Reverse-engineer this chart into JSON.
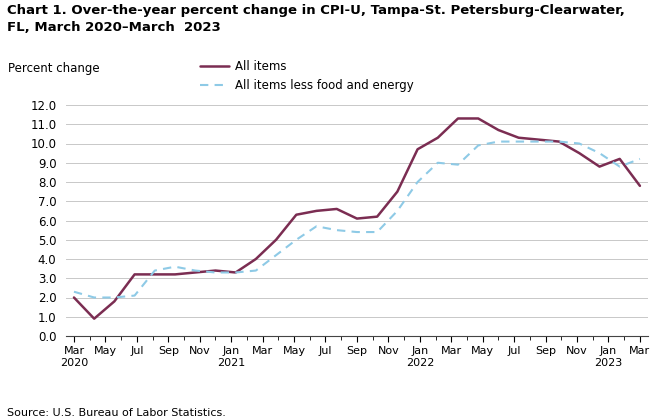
{
  "title": "Chart 1. Over-the-year percent change in CPI-U, Tampa-St. Petersburg-Clearwater,\nFL, March 2020–March  2023",
  "ylabel": "Percent change",
  "source": "Source: U.S. Bureau of Labor Statistics.",
  "all_items": [
    2.0,
    0.9,
    1.8,
    3.2,
    3.2,
    3.2,
    3.3,
    3.4,
    3.3,
    4.0,
    5.0,
    6.3,
    6.5,
    6.6,
    6.1,
    6.2,
    7.5,
    9.7,
    10.3,
    11.3,
    11.3,
    10.7,
    10.3,
    10.2,
    10.1,
    9.5,
    8.8,
    9.2,
    7.8
  ],
  "less_food_energy": [
    2.3,
    2.0,
    2.0,
    2.1,
    3.4,
    3.6,
    3.4,
    3.3,
    3.3,
    3.4,
    4.2,
    5.0,
    5.7,
    5.5,
    5.4,
    5.4,
    6.5,
    8.0,
    9.0,
    8.9,
    9.9,
    10.1,
    10.1,
    10.1,
    10.1,
    10.0,
    9.5,
    8.8,
    9.2
  ],
  "x_tick_labels": [
    "Mar\n2020",
    "May",
    "Jul",
    "Sep",
    "Nov",
    "Jan\n2021",
    "Mar",
    "May",
    "Jul",
    "Sep",
    "Nov",
    "Jan\n2022",
    "Mar",
    "May",
    "Jul",
    "Sep",
    "Nov",
    "Jan\n2023",
    "Mar"
  ],
  "x_tick_positions": [
    0,
    2,
    4,
    6,
    8,
    10,
    12,
    14,
    16,
    18,
    20,
    22,
    24,
    26,
    28,
    30,
    32,
    34,
    36
  ],
  "all_items_color": "#7b2d52",
  "less_food_energy_color": "#8ecae6",
  "ylim": [
    0.0,
    12.0
  ],
  "yticks": [
    0.0,
    1.0,
    2.0,
    3.0,
    4.0,
    5.0,
    6.0,
    7.0,
    8.0,
    9.0,
    10.0,
    11.0,
    12.0
  ]
}
